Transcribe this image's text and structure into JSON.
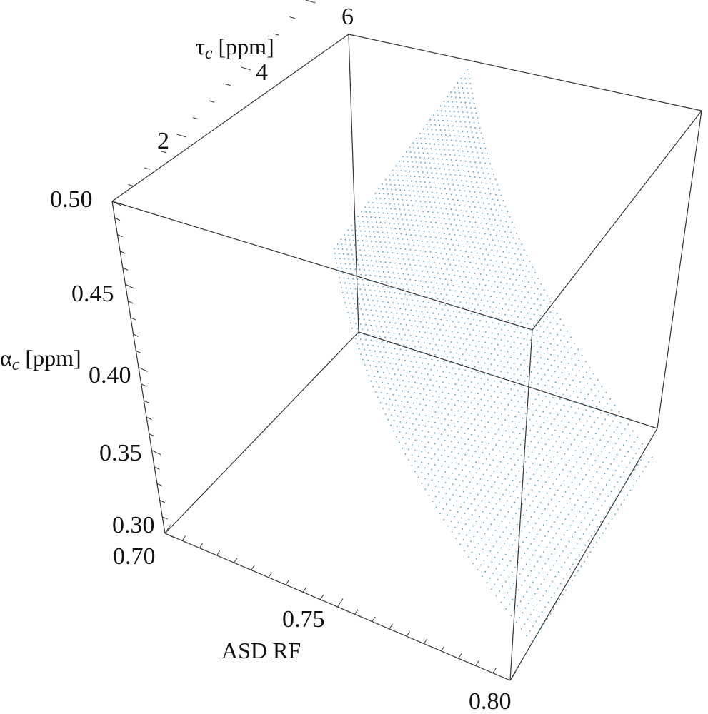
{
  "chart_data": {
    "type": "scatter3d",
    "axes": {
      "x": {
        "label": "ASD RF",
        "range": [
          0.7,
          0.8
        ],
        "ticks": [
          "0.70",
          "0.75",
          "0.80"
        ]
      },
      "y": {
        "label_main": "τ",
        "label_sub": "c",
        "label_unit": " [ppm]",
        "range": [
          0,
          6
        ],
        "ticks": [
          "2",
          "4",
          "6"
        ]
      },
      "z": {
        "label_main": "α",
        "label_sub": "c",
        "label_unit": " [ppm]",
        "range": [
          0.3,
          0.5
        ],
        "ticks": [
          "0.50",
          "0.45",
          "0.40",
          "0.35",
          "0.30"
        ]
      }
    },
    "grid": false,
    "series": [
      {
        "color": "#4a9cc8",
        "surface_lines": 40,
        "tau_range": [
          1.0,
          6.0
        ],
        "alpha_range": [
          0.3,
          0.5
        ],
        "asd_at_alpha_min": [
          0.797,
          0.785
        ],
        "asd_at_alpha_max": [
          0.755,
          0.747
        ]
      }
    ]
  }
}
